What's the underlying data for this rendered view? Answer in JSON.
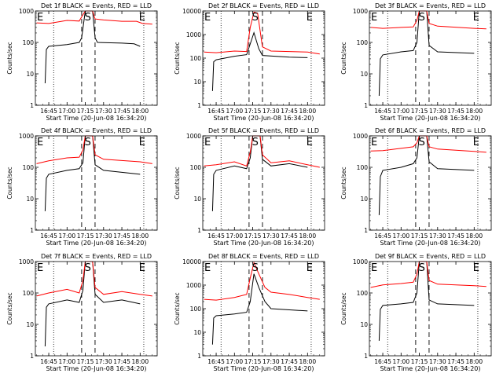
{
  "figure": {
    "xlabel": "Start Time (20-Jun-08 16:34:20)",
    "ylabel": "Counts/sec",
    "xticks": [
      "16:45",
      "17:00",
      "17:15",
      "17:30",
      "17:45",
      "18:00"
    ],
    "yticks": [
      "1",
      "10",
      "100",
      "1000",
      "10000"
    ],
    "markers": {
      "E": "E",
      "S": "S"
    },
    "colors": {
      "events": "#000000",
      "lld": "#ff0000",
      "axis": "#000000"
    }
  },
  "chart_data": [
    {
      "type": "line",
      "title": "Det 1f BLACK = Events, RED = LLD",
      "ylim": [
        1,
        1000
      ],
      "xlabel": "Start Time (20-Jun-08 16:34:20)",
      "ylabel": "Counts/sec",
      "markers_labels": [
        "E",
        "S",
        "E"
      ],
      "series": [
        {
          "name": "Events",
          "color": "#000000",
          "points": [
            [
              "16:42",
              5
            ],
            [
              "16:43",
              60
            ],
            [
              "16:45",
              75
            ],
            [
              "17:00",
              85
            ],
            [
              "17:10",
              100
            ],
            [
              "17:12",
              140
            ],
            [
              "17:15",
              1000
            ],
            [
              "17:21",
              1000
            ],
            [
              "17:23",
              140
            ],
            [
              "17:25",
              100
            ],
            [
              "17:45",
              95
            ],
            [
              "17:55",
              90
            ],
            [
              "18:00",
              75
            ]
          ]
        },
        {
          "name": "LLD",
          "color": "#ff0000",
          "points": [
            [
              "16:35",
              420
            ],
            [
              "16:45",
              400
            ],
            [
              "17:00",
              500
            ],
            [
              "17:10",
              480
            ],
            [
              "17:12",
              650
            ],
            [
              "17:15",
              1000
            ],
            [
              "17:21",
              1000
            ],
            [
              "17:23",
              560
            ],
            [
              "17:30",
              520
            ],
            [
              "17:45",
              470
            ],
            [
              "17:57",
              470
            ],
            [
              "18:02",
              400
            ],
            [
              "18:10",
              380
            ]
          ]
        }
      ]
    },
    {
      "type": "line",
      "title": "Det 2f BLACK = Events, RED = LLD",
      "ylim": [
        1,
        10000
      ],
      "xlabel": "Start Time (20-Jun-08 16:34:20)",
      "ylabel": "Counts/sec",
      "markers_labels": [
        "E",
        "S",
        "E"
      ],
      "series": [
        {
          "name": "Events",
          "color": "#000000",
          "points": [
            [
              "16:42",
              4
            ],
            [
              "16:43",
              70
            ],
            [
              "16:45",
              85
            ],
            [
              "17:00",
              120
            ],
            [
              "17:10",
              140
            ],
            [
              "17:13",
              400
            ],
            [
              "17:16",
              1200
            ],
            [
              "17:20",
              250
            ],
            [
              "17:23",
              130
            ],
            [
              "17:45",
              110
            ],
            [
              "18:00",
              105
            ]
          ]
        },
        {
          "name": "LLD",
          "color": "#ff0000",
          "points": [
            [
              "16:35",
              180
            ],
            [
              "16:45",
              170
            ],
            [
              "17:00",
              200
            ],
            [
              "17:10",
              190
            ],
            [
              "17:13",
              2000
            ],
            [
              "17:16",
              9000
            ],
            [
              "17:19",
              8000
            ],
            [
              "17:23",
              300
            ],
            [
              "17:30",
              200
            ],
            [
              "17:45",
              190
            ],
            [
              "18:00",
              180
            ],
            [
              "18:10",
              150
            ]
          ]
        }
      ]
    },
    {
      "type": "line",
      "title": "Det 3f BLACK = Events, RED = LLD",
      "ylim": [
        1,
        1000
      ],
      "xlabel": "Start Time (20-Jun-08 16:34:20)",
      "ylabel": "Counts/sec",
      "markers_labels": [
        "E",
        "S",
        "E"
      ],
      "series": [
        {
          "name": "Events",
          "color": "#000000",
          "points": [
            [
              "16:42",
              2
            ],
            [
              "16:43",
              30
            ],
            [
              "16:45",
              40
            ],
            [
              "17:00",
              50
            ],
            [
              "17:10",
              55
            ],
            [
              "17:13",
              100
            ],
            [
              "17:15",
              1000
            ],
            [
              "17:21",
              1000
            ],
            [
              "17:23",
              80
            ],
            [
              "17:30",
              50
            ],
            [
              "18:00",
              45
            ]
          ]
        },
        {
          "name": "LLD",
          "color": "#ff0000",
          "points": [
            [
              "16:35",
              300
            ],
            [
              "16:45",
              280
            ],
            [
              "17:00",
              300
            ],
            [
              "17:10",
              310
            ],
            [
              "17:13",
              500
            ],
            [
              "17:15",
              1000
            ],
            [
              "17:21",
              1000
            ],
            [
              "17:23",
              400
            ],
            [
              "17:30",
              330
            ],
            [
              "18:00",
              280
            ],
            [
              "18:10",
              270
            ]
          ]
        }
      ]
    },
    {
      "type": "line",
      "title": "Det 4f BLACK = Events, RED = LLD",
      "ylim": [
        1,
        1000
      ],
      "xlabel": "Start Time (20-Jun-08 16:34:20)",
      "ylabel": "Counts/sec",
      "markers_labels": [
        "E",
        "S",
        "E"
      ],
      "series": [
        {
          "name": "Events",
          "color": "#000000",
          "points": [
            [
              "16:42",
              4
            ],
            [
              "16:43",
              45
            ],
            [
              "16:45",
              60
            ],
            [
              "17:00",
              80
            ],
            [
              "17:10",
              90
            ],
            [
              "17:13",
              140
            ],
            [
              "17:15",
              1000
            ],
            [
              "17:21",
              1000
            ],
            [
              "17:23",
              120
            ],
            [
              "17:30",
              80
            ],
            [
              "18:00",
              60
            ]
          ]
        },
        {
          "name": "LLD",
          "color": "#ff0000",
          "points": [
            [
              "16:35",
              130
            ],
            [
              "16:45",
              160
            ],
            [
              "17:00",
              200
            ],
            [
              "17:10",
              210
            ],
            [
              "17:13",
              350
            ],
            [
              "17:15",
              1000
            ],
            [
              "17:21",
              1000
            ],
            [
              "17:23",
              250
            ],
            [
              "17:30",
              180
            ],
            [
              "18:00",
              150
            ],
            [
              "18:10",
              130
            ]
          ]
        }
      ]
    },
    {
      "type": "line",
      "title": "Det 5f BLACK = Events, RED = LLD",
      "ylim": [
        1,
        1000
      ],
      "xlabel": "Start Time (20-Jun-08 16:34:20)",
      "ylabel": "Counts/sec",
      "markers_labels": [
        "E",
        "S",
        "E"
      ],
      "series": [
        {
          "name": "Events",
          "color": "#000000",
          "points": [
            [
              "16:42",
              4
            ],
            [
              "16:43",
              60
            ],
            [
              "16:45",
              80
            ],
            [
              "17:00",
              110
            ],
            [
              "17:10",
              90
            ],
            [
              "17:13",
              200
            ],
            [
              "17:15",
              1000
            ],
            [
              "17:21",
              1000
            ],
            [
              "17:23",
              180
            ],
            [
              "17:30",
              110
            ],
            [
              "17:45",
              130
            ],
            [
              "18:00",
              100
            ]
          ]
        },
        {
          "name": "LLD",
          "color": "#ff0000",
          "points": [
            [
              "16:35",
              110
            ],
            [
              "16:45",
              120
            ],
            [
              "17:00",
              150
            ],
            [
              "17:10",
              110
            ],
            [
              "17:13",
              300
            ],
            [
              "17:15",
              1000
            ],
            [
              "17:21",
              1000
            ],
            [
              "17:23",
              250
            ],
            [
              "17:30",
              140
            ],
            [
              "17:45",
              160
            ],
            [
              "18:00",
              120
            ],
            [
              "18:10",
              100
            ]
          ]
        }
      ]
    },
    {
      "type": "line",
      "title": "Det 6f BLACK = Events, RED = LLD",
      "ylim": [
        1,
        1000
      ],
      "xlabel": "Start Time (20-Jun-08 16:34:20)",
      "ylabel": "Counts/sec",
      "markers_labels": [
        "E",
        "S",
        "E"
      ],
      "series": [
        {
          "name": "Events",
          "color": "#000000",
          "points": [
            [
              "16:42",
              3
            ],
            [
              "16:43",
              50
            ],
            [
              "16:45",
              80
            ],
            [
              "17:00",
              100
            ],
            [
              "17:10",
              130
            ],
            [
              "17:13",
              200
            ],
            [
              "17:15",
              1000
            ],
            [
              "17:21",
              1000
            ],
            [
              "17:23",
              150
            ],
            [
              "17:30",
              90
            ],
            [
              "18:00",
              80
            ]
          ]
        },
        {
          "name": "LLD",
          "color": "#ff0000",
          "points": [
            [
              "16:35",
              330
            ],
            [
              "16:45",
              340
            ],
            [
              "17:00",
              400
            ],
            [
              "17:10",
              450
            ],
            [
              "17:13",
              600
            ],
            [
              "17:15",
              1000
            ],
            [
              "17:21",
              1000
            ],
            [
              "17:23",
              450
            ],
            [
              "17:30",
              380
            ],
            [
              "18:00",
              320
            ],
            [
              "18:10",
              300
            ]
          ]
        }
      ]
    },
    {
      "type": "line",
      "title": "Det 7f BLACK = Events, RED = LLD",
      "ylim": [
        1,
        1000
      ],
      "xlabel": "Start Time (20-Jun-08 16:34:20)",
      "ylabel": "Counts/sec",
      "markers_labels": [
        "E",
        "S",
        "E"
      ],
      "series": [
        {
          "name": "Events",
          "color": "#000000",
          "points": [
            [
              "16:42",
              2
            ],
            [
              "16:43",
              35
            ],
            [
              "16:45",
              45
            ],
            [
              "17:00",
              60
            ],
            [
              "17:10",
              50
            ],
            [
              "17:13",
              120
            ],
            [
              "17:15",
              1000
            ],
            [
              "17:21",
              1000
            ],
            [
              "17:23",
              90
            ],
            [
              "17:30",
              50
            ],
            [
              "17:45",
              60
            ],
            [
              "18:00",
              45
            ]
          ]
        },
        {
          "name": "LLD",
          "color": "#ff0000",
          "points": [
            [
              "16:35",
              80
            ],
            [
              "16:45",
              100
            ],
            [
              "17:00",
              130
            ],
            [
              "17:10",
              100
            ],
            [
              "17:13",
              250
            ],
            [
              "17:15",
              1000
            ],
            [
              "17:21",
              1000
            ],
            [
              "17:23",
              150
            ],
            [
              "17:30",
              90
            ],
            [
              "17:45",
              110
            ],
            [
              "18:00",
              90
            ],
            [
              "18:10",
              80
            ]
          ]
        }
      ]
    },
    {
      "type": "line",
      "title": "Det 8f BLACK = Events, RED = LLD",
      "ylim": [
        1,
        10000
      ],
      "xlabel": "Start Time (20-Jun-08 16:34:20)",
      "ylabel": "Counts/sec",
      "markers_labels": [
        "E",
        "S",
        "E"
      ],
      "series": [
        {
          "name": "Events",
          "color": "#000000",
          "points": [
            [
              "16:42",
              3
            ],
            [
              "16:43",
              40
            ],
            [
              "16:45",
              50
            ],
            [
              "17:00",
              60
            ],
            [
              "17:10",
              70
            ],
            [
              "17:13",
              200
            ],
            [
              "17:16",
              3000
            ],
            [
              "17:20",
              800
            ],
            [
              "17:25",
              200
            ],
            [
              "17:30",
              100
            ],
            [
              "18:00",
              80
            ]
          ]
        },
        {
          "name": "LLD",
          "color": "#ff0000",
          "points": [
            [
              "16:35",
              250
            ],
            [
              "16:45",
              230
            ],
            [
              "17:00",
              300
            ],
            [
              "17:10",
              400
            ],
            [
              "17:13",
              2000
            ],
            [
              "17:16",
              9000
            ],
            [
              "17:20",
              3000
            ],
            [
              "17:25",
              800
            ],
            [
              "17:30",
              500
            ],
            [
              "17:45",
              400
            ],
            [
              "18:00",
              300
            ],
            [
              "18:10",
              250
            ]
          ]
        }
      ]
    },
    {
      "type": "line",
      "title": "Det 9f BLACK = Events, RED = LLD",
      "ylim": [
        1,
        1000
      ],
      "xlabel": "Start Time (20-Jun-08 16:34:20)",
      "ylabel": "Counts/sec",
      "markers_labels": [
        "E",
        "S",
        "E"
      ],
      "series": [
        {
          "name": "Events",
          "color": "#000000",
          "points": [
            [
              "16:42",
              3
            ],
            [
              "16:43",
              30
            ],
            [
              "16:45",
              40
            ],
            [
              "17:00",
              45
            ],
            [
              "17:10",
              50
            ],
            [
              "17:13",
              100
            ],
            [
              "17:15",
              1000
            ],
            [
              "17:21",
              1000
            ],
            [
              "17:23",
              60
            ],
            [
              "17:30",
              45
            ],
            [
              "18:00",
              40
            ]
          ]
        },
        {
          "name": "LLD",
          "color": "#ff0000",
          "points": [
            [
              "16:35",
              150
            ],
            [
              "16:45",
              180
            ],
            [
              "17:00",
              200
            ],
            [
              "17:10",
              220
            ],
            [
              "17:13",
              400
            ],
            [
              "17:15",
              1000
            ],
            [
              "17:21",
              1000
            ],
            [
              "17:23",
              250
            ],
            [
              "17:30",
              190
            ],
            [
              "18:00",
              170
            ],
            [
              "18:10",
              160
            ]
          ]
        }
      ]
    }
  ]
}
